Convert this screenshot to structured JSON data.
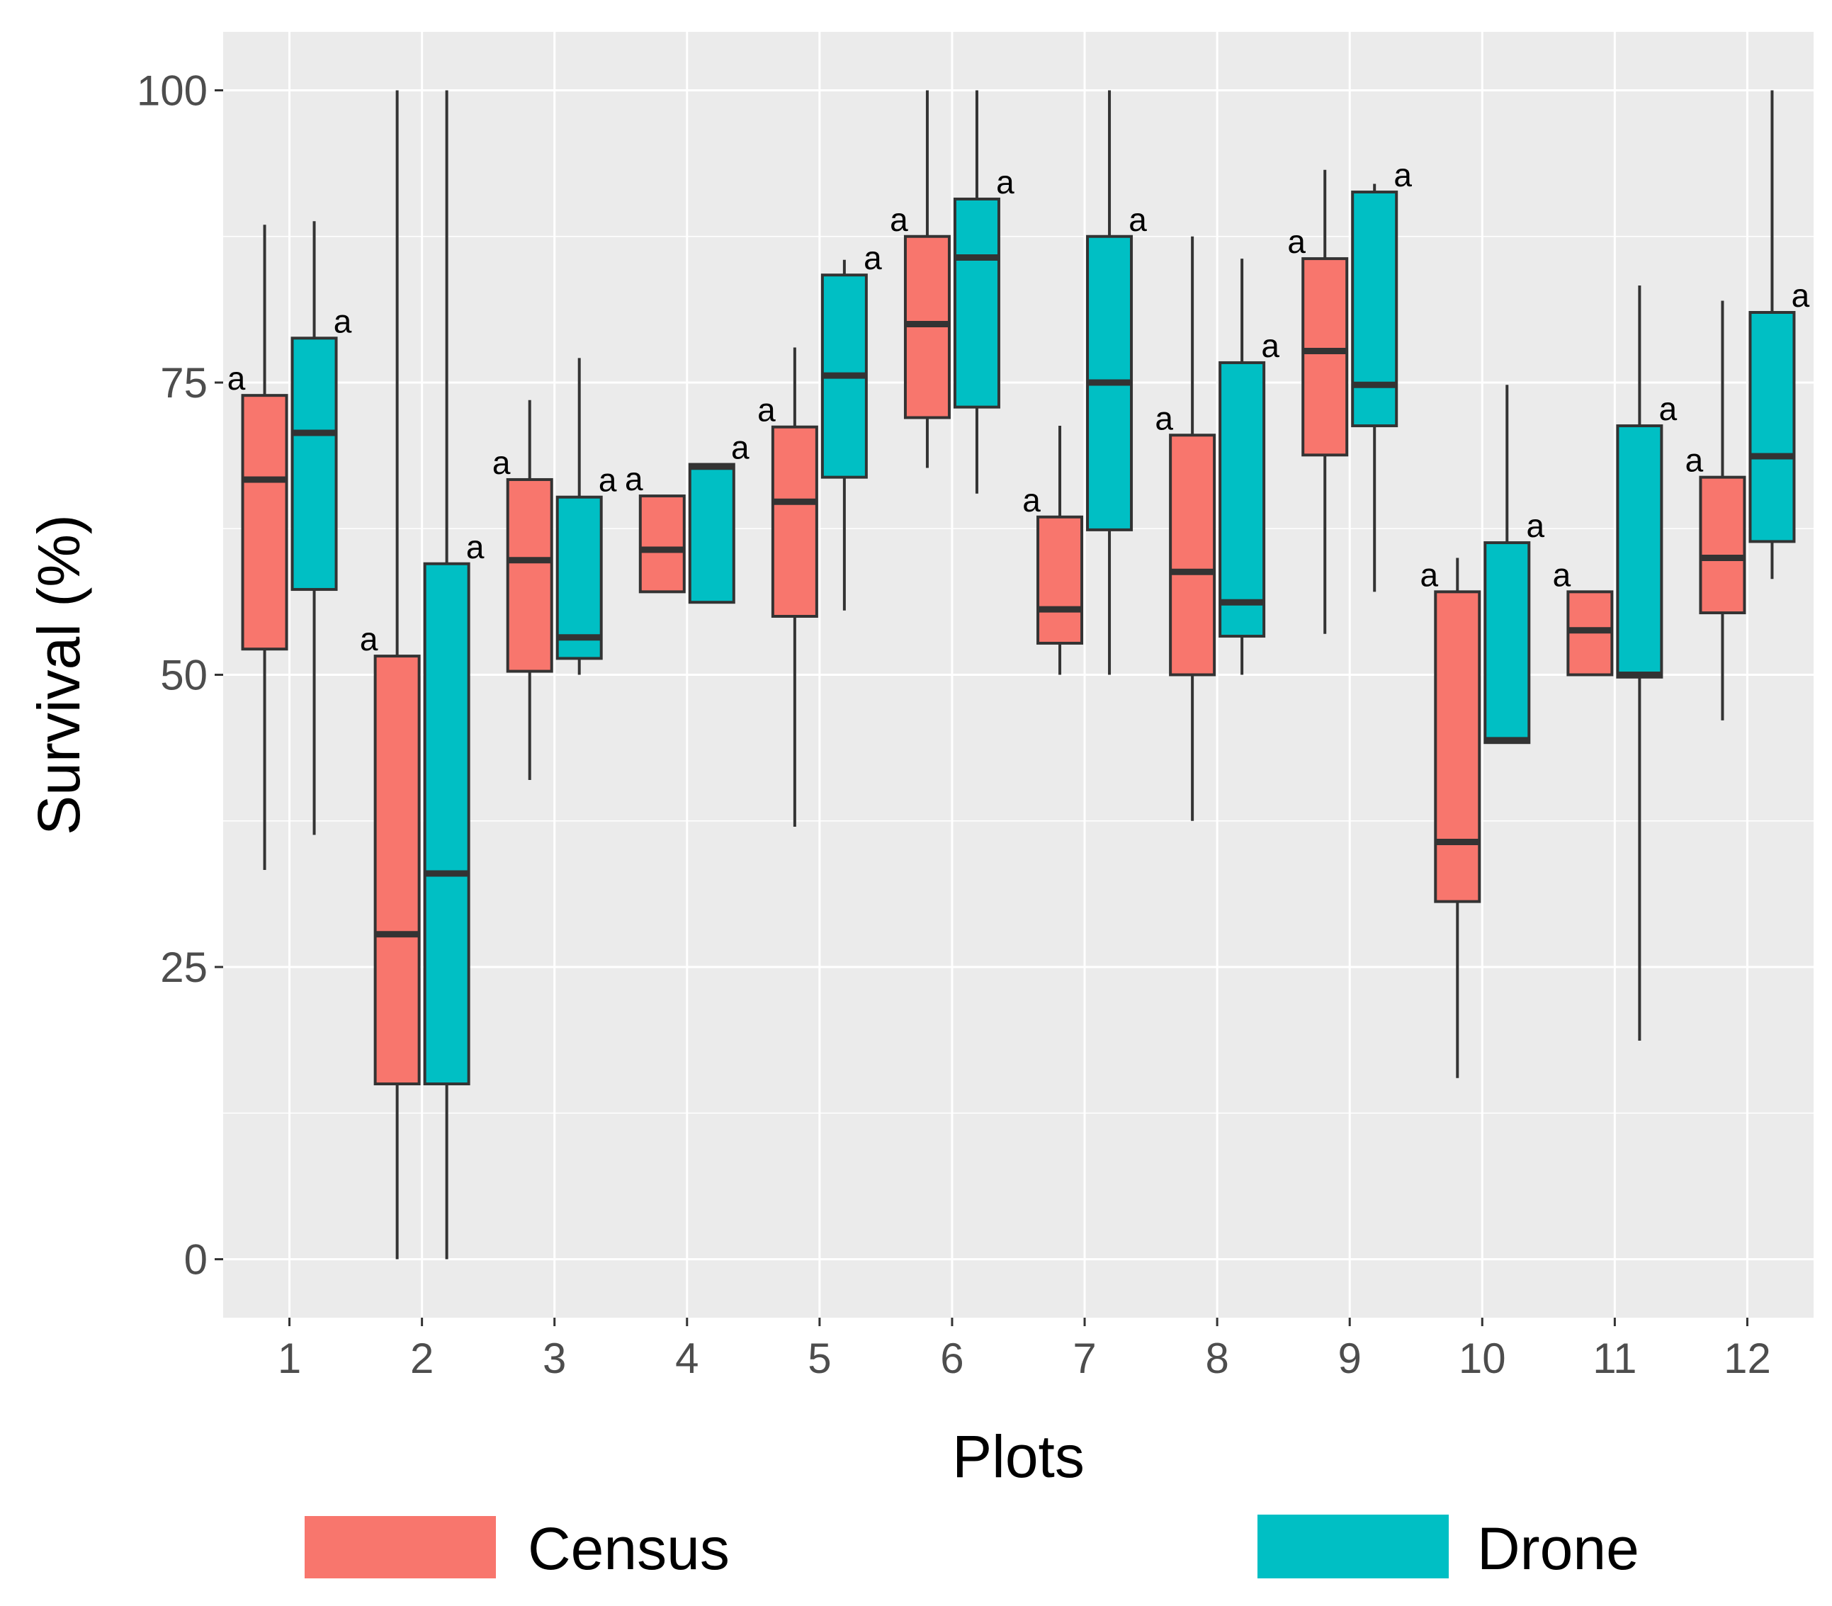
{
  "chart_data": {
    "type": "boxplot",
    "xlabel": "Plots",
    "ylabel": "Survival (%)",
    "ylim": [
      -5,
      105
    ],
    "yticks": [
      "0",
      "25",
      "50",
      "75",
      "100"
    ],
    "categories": [
      "1",
      "2",
      "3",
      "4",
      "5",
      "6",
      "7",
      "8",
      "9",
      "10",
      "11",
      "12"
    ],
    "grid": true,
    "legend_position": "bottom",
    "series": [
      {
        "name": "Census",
        "color": "#F8766D",
        "boxes": [
          {
            "min": 33.3,
            "q1": 52.2,
            "median": 66.7,
            "q3": 73.9,
            "max": 88.5
          },
          {
            "min": 0,
            "q1": 15,
            "median": 27.8,
            "q3": 51.6,
            "max": 100
          },
          {
            "min": 41,
            "q1": 50.3,
            "median": 59.8,
            "q3": 66.7,
            "max": 73.5
          },
          {
            "min": 57.1,
            "q1": 57.1,
            "median": 60.7,
            "q3": 65.3,
            "max": 65.3
          },
          {
            "min": 37,
            "q1": 55,
            "median": 64.8,
            "q3": 71.2,
            "max": 78
          },
          {
            "min": 67.7,
            "q1": 72,
            "median": 80,
            "q3": 87.5,
            "max": 100
          },
          {
            "min": 50,
            "q1": 52.7,
            "median": 55.6,
            "q3": 63.5,
            "max": 71.3
          },
          {
            "min": 37.5,
            "q1": 50,
            "median": 58.8,
            "q3": 70.5,
            "max": 87.5
          },
          {
            "min": 53.5,
            "q1": 68.8,
            "median": 77.7,
            "q3": 85.6,
            "max": 93.2
          },
          {
            "min": 15.5,
            "q1": 30.6,
            "median": 35.7,
            "q3": 57.1,
            "max": 60
          },
          {
            "min": 50,
            "q1": 50,
            "median": 53.8,
            "q3": 57.1,
            "max": 57.1
          },
          {
            "min": 46.1,
            "q1": 55.3,
            "median": 60,
            "q3": 66.9,
            "max": 82
          }
        ],
        "labels": [
          "a",
          "a",
          "a",
          "a",
          "a",
          "a",
          "a",
          "a",
          "a",
          "a",
          "a",
          "a"
        ]
      },
      {
        "name": "Drone",
        "color": "#00BFC4",
        "boxes": [
          {
            "min": 36.3,
            "q1": 57.3,
            "median": 70.7,
            "q3": 78.8,
            "max": 88.8
          },
          {
            "min": 0,
            "q1": 15,
            "median": 33,
            "q3": 59.5,
            "max": 100
          },
          {
            "min": 50,
            "q1": 51.4,
            "median": 53.2,
            "q3": 65.2,
            "max": 77.1
          },
          {
            "min": 56.2,
            "q1": 56.2,
            "median": 67.8,
            "q3": 68,
            "max": 68
          },
          {
            "min": 55.5,
            "q1": 66.9,
            "median": 75.6,
            "q3": 84.2,
            "max": 85.5
          },
          {
            "min": 65.5,
            "q1": 72.9,
            "median": 85.7,
            "q3": 90.7,
            "max": 100
          },
          {
            "min": 50,
            "q1": 62.4,
            "median": 75,
            "q3": 87.5,
            "max": 100
          },
          {
            "min": 50,
            "q1": 53.3,
            "median": 56.2,
            "q3": 76.7,
            "max": 85.6
          },
          {
            "min": 57.1,
            "q1": 71.3,
            "median": 74.8,
            "q3": 91.3,
            "max": 92
          },
          {
            "min": 44.2,
            "q1": 44.2,
            "median": 44.4,
            "q3": 61.3,
            "max": 74.8
          },
          {
            "min": 18.7,
            "q1": 49.8,
            "median": 50,
            "q3": 71.3,
            "max": 83.3
          },
          {
            "min": 58.2,
            "q1": 61.4,
            "median": 68.7,
            "q3": 81,
            "max": 100
          }
        ],
        "labels": [
          "a",
          "a",
          "a",
          "a",
          "a",
          "a",
          "a",
          "a",
          "a",
          "a",
          "a",
          "a"
        ]
      }
    ]
  },
  "legend": {
    "census_label": "Census",
    "drone_label": "Drone"
  },
  "colors": {
    "panel_background": "#EBEBEB",
    "grid_major": "#FFFFFF",
    "box_outline": "#333333"
  }
}
